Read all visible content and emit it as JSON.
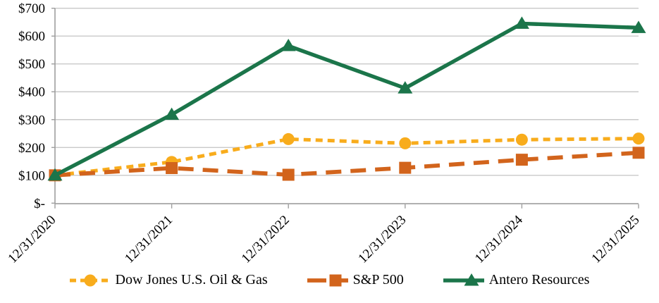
{
  "chart_data": {
    "type": "line",
    "title": "",
    "categories": [
      "12/31/2020",
      "12/31/2021",
      "12/31/2022",
      "12/31/2023",
      "12/31/2024",
      "12/31/2025"
    ],
    "series": [
      {
        "id": "dow-jones-us-oil-gas",
        "name": "Dow Jones U.S. Oil & Gas",
        "color": "#F8AC1C",
        "marker": "circle",
        "line_style": "short-dash",
        "values": [
          100,
          148,
          230,
          215,
          228,
          232
        ]
      },
      {
        "id": "sp-500",
        "name": "S&P 500",
        "color": "#D2641C",
        "marker": "square",
        "line_style": "long-dash",
        "values": [
          100,
          126,
          102,
          127,
          156,
          181
        ]
      },
      {
        "id": "antero-resources",
        "name": "Antero Resources",
        "color": "#1B754A",
        "marker": "triangle",
        "line_style": "solid",
        "values": [
          100,
          318,
          565,
          413,
          645,
          630
        ]
      }
    ],
    "y_axis": {
      "tick_values": [
        0,
        100,
        200,
        300,
        400,
        500,
        600,
        700
      ],
      "tick_labels": [
        "$-",
        "$100",
        "$200",
        "$300",
        "$400",
        "$500",
        "$600",
        "$700"
      ],
      "range": [
        0,
        700
      ]
    },
    "x_axis": {
      "tick_labels": [
        "12/31/2020",
        "12/31/2021",
        "12/31/2022",
        "12/31/2023",
        "12/31/2024",
        "12/31/2025"
      ]
    },
    "grid": "horizontal",
    "legend_position": "bottom"
  }
}
